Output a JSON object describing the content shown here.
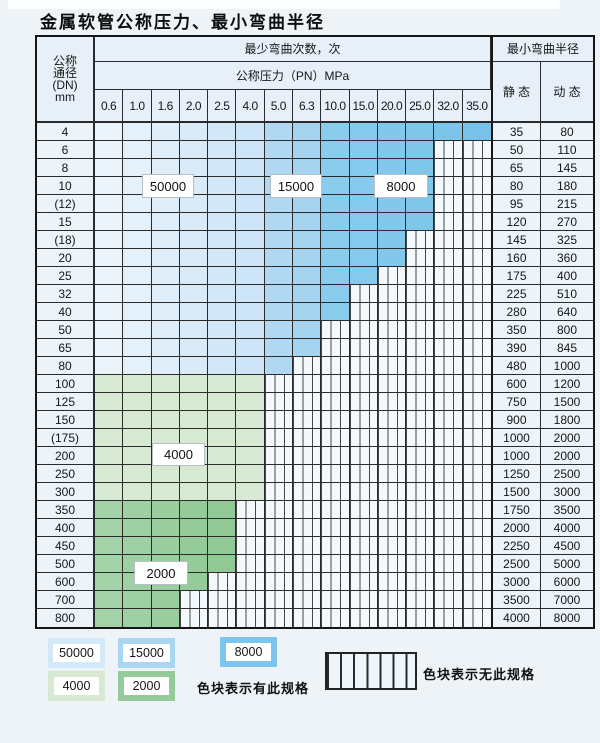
{
  "title": "金属软管公称压力、最小弯曲半径",
  "colors": {
    "c50000": "#d4e9f8",
    "c15000": "#a9d6f1",
    "c8000": "#7cc5ec",
    "c4000": "#d7e9d2",
    "c2000": "#95cb9b",
    "blue_light_start": "#ebf4fb",
    "blue_light_end": "#cde5f6",
    "blue_mid_start": "#b0d8f2",
    "blue_mid_end": "#a6d3f0",
    "blue_dark_start": "#8accee",
    "blue_dark_end": "#78c2e9",
    "green_light": "#d7e9d2",
    "green_dark_start": "#a3d2a8",
    "green_dark_end": "#90c996",
    "hatch_bg": "#f3f8fc",
    "grid": "#2b2b2b",
    "header_bg": "#e7f0f8",
    "label_bg": "#ecf3f9",
    "page_bg": "#eef3f7"
  },
  "table": {
    "header": {
      "dn_lines": [
        "公称",
        "通径",
        "(DN)",
        "mm"
      ],
      "bend_cycles": "最少弯曲次数，次",
      "pressure": "公称压力（PN）MPa",
      "bend_radius": "最小弯曲半径",
      "static": "静 态",
      "dynamic": "动 态",
      "pressures": [
        "0.6",
        "1.0",
        "1.6",
        "2.0",
        "2.5",
        "4.0",
        "5.0",
        "6.3",
        "10.0",
        "15.0",
        "20.0",
        "25.0",
        "32.0",
        "35.0"
      ]
    },
    "rows": [
      {
        "dn": "4",
        "colored": 14,
        "band": "blue",
        "static": "35",
        "dynamic": "80"
      },
      {
        "dn": "6",
        "colored": 12,
        "band": "blue",
        "static": "50",
        "dynamic": "110"
      },
      {
        "dn": "8",
        "colored": 12,
        "band": "blue",
        "static": "65",
        "dynamic": "145"
      },
      {
        "dn": "10",
        "colored": 12,
        "band": "blue",
        "static": "80",
        "dynamic": "180"
      },
      {
        "dn": "(12)",
        "colored": 12,
        "band": "blue",
        "static": "95",
        "dynamic": "215"
      },
      {
        "dn": "15",
        "colored": 12,
        "band": "blue",
        "static": "120",
        "dynamic": "270"
      },
      {
        "dn": "(18)",
        "colored": 11,
        "band": "blue",
        "static": "145",
        "dynamic": "325"
      },
      {
        "dn": "20",
        "colored": 11,
        "band": "blue",
        "static": "160",
        "dynamic": "360"
      },
      {
        "dn": "25",
        "colored": 10,
        "band": "blue",
        "static": "175",
        "dynamic": "400"
      },
      {
        "dn": "32",
        "colored": 9,
        "band": "blue",
        "static": "225",
        "dynamic": "510"
      },
      {
        "dn": "40",
        "colored": 9,
        "band": "blue",
        "static": "280",
        "dynamic": "640"
      },
      {
        "dn": "50",
        "colored": 8,
        "band": "blue",
        "static": "350",
        "dynamic": "800"
      },
      {
        "dn": "65",
        "colored": 8,
        "band": "blue",
        "static": "390",
        "dynamic": "845"
      },
      {
        "dn": "80",
        "colored": 7,
        "band": "blue",
        "static": "480",
        "dynamic": "1000"
      },
      {
        "dn": "100",
        "colored": 6,
        "band": "green4000",
        "static": "600",
        "dynamic": "1200"
      },
      {
        "dn": "125",
        "colored": 6,
        "band": "green4000",
        "static": "750",
        "dynamic": "1500"
      },
      {
        "dn": "150",
        "colored": 6,
        "band": "green4000",
        "static": "900",
        "dynamic": "1800"
      },
      {
        "dn": "(175)",
        "colored": 6,
        "band": "green4000",
        "static": "1000",
        "dynamic": "2000"
      },
      {
        "dn": "200",
        "colored": 6,
        "band": "green4000",
        "static": "1000",
        "dynamic": "2000"
      },
      {
        "dn": "250",
        "colored": 6,
        "band": "green4000",
        "static": "1250",
        "dynamic": "2500"
      },
      {
        "dn": "300",
        "colored": 6,
        "band": "green4000",
        "static": "1500",
        "dynamic": "3000"
      },
      {
        "dn": "350",
        "colored": 5,
        "band": "green2000",
        "static": "1750",
        "dynamic": "3500"
      },
      {
        "dn": "400",
        "colored": 5,
        "band": "green2000",
        "static": "2000",
        "dynamic": "4000"
      },
      {
        "dn": "450",
        "colored": 5,
        "band": "green2000",
        "static": "2250",
        "dynamic": "4500"
      },
      {
        "dn": "500",
        "colored": 5,
        "band": "green2000",
        "static": "2500",
        "dynamic": "5000"
      },
      {
        "dn": "600",
        "colored": 4,
        "band": "green2000",
        "static": "3000",
        "dynamic": "6000"
      },
      {
        "dn": "700",
        "colored": 3,
        "band": "green2000",
        "static": "3500",
        "dynamic": "7000"
      },
      {
        "dn": "800",
        "colored": 3,
        "band": "green2000",
        "static": "4000",
        "dynamic": "8000"
      }
    ]
  },
  "cycle_labels": [
    "50000",
    "15000",
    "8000",
    "4000",
    "2000"
  ],
  "legend": {
    "swatches": [
      {
        "label": "50000",
        "color_key": "c50000"
      },
      {
        "label": "15000",
        "color_key": "c15000"
      },
      {
        "label": "8000",
        "color_key": "c8000"
      },
      {
        "label": "4000",
        "color_key": "c4000"
      },
      {
        "label": "2000",
        "color_key": "c2000"
      }
    ],
    "has_spec_text": "色块表示有此规格",
    "no_spec_text": "色块表示无此规格"
  }
}
